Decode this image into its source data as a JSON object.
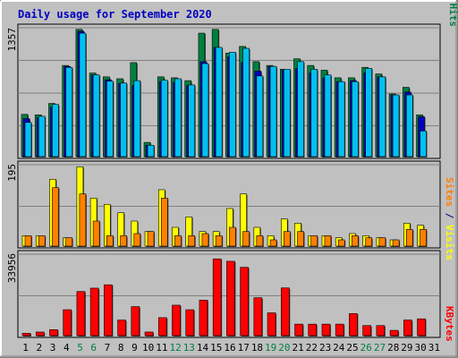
{
  "chart_data": {
    "type": "bar",
    "title": "Daily usage for September 2020",
    "days": [
      "1",
      "2",
      "3",
      "4",
      "5",
      "6",
      "7",
      "8",
      "9",
      "10",
      "11",
      "12",
      "13",
      "14",
      "15",
      "16",
      "17",
      "18",
      "19",
      "20",
      "21",
      "22",
      "23",
      "24",
      "25",
      "26",
      "27",
      "28",
      "29",
      "30",
      "31"
    ],
    "weekend_days": [
      "5",
      "6",
      "12",
      "13",
      "19",
      "20",
      "26",
      "27"
    ],
    "panels": {
      "top": {
        "max_label": "1357",
        "ymax": 1357,
        "legend": [
          {
            "text": "Pages",
            "color": "#00c0f0"
          },
          {
            "text": " / ",
            "color": "#00008b"
          },
          {
            "text": "Files",
            "color": "#0000c0"
          },
          {
            "text": " / ",
            "color": "#00008b"
          },
          {
            "text": "Hits",
            "color": "#008040"
          }
        ],
        "series": [
          {
            "name": "Hits",
            "color": "#008040",
            "values": [
              445,
              440,
              560,
              960,
              1340,
              880,
              840,
              820,
              990,
              150,
              840,
              830,
              800,
              1300,
              1340,
              1090,
              1160,
              1000,
              960,
              920,
              1030,
              960,
              910,
              830,
              830,
              940,
              870,
              660,
              730,
              440,
              0
            ]
          },
          {
            "name": "Files",
            "color": "#0000c0",
            "values": [
              400,
              410,
              520,
              950,
              1320,
              860,
              810,
              770,
              750,
              120,
              790,
              780,
              750,
              1000,
              1150,
              1050,
              990,
              900,
              950,
              910,
              930,
              880,
              830,
              790,
              800,
              880,
              840,
              650,
              680,
              420,
              0
            ]
          },
          {
            "name": "Pages",
            "color": "#00c0f0",
            "values": [
              360,
              425,
              550,
              940,
              1300,
              860,
              795,
              775,
              800,
              120,
              805,
              820,
              755,
              980,
              1150,
              1100,
              1140,
              850,
              950,
              920,
              1000,
              920,
              860,
              790,
              790,
              930,
              840,
              650,
              650,
              270,
              0
            ]
          }
        ]
      },
      "middle": {
        "max_label": "195",
        "ymax": 195,
        "legend": [
          {
            "text": "Sites",
            "color": "#ff8000"
          },
          {
            "text": " / ",
            "color": "#00008b"
          },
          {
            "text": "Visits",
            "color": "#ffff00"
          }
        ],
        "series": [
          {
            "name": "Visits",
            "color": "#ffff00",
            "values": [
              25,
              25,
              160,
              20,
              190,
              115,
              100,
              80,
              60,
              35,
              135,
              45,
              70,
              35,
              35,
              90,
              125,
              45,
              25,
              65,
              55,
              25,
              25,
              20,
              30,
              25,
              20,
              15,
              55,
              50,
              0
            ]
          },
          {
            "name": "Sites",
            "color": "#ff8000",
            "values": [
              25,
              25,
              140,
              20,
              125,
              60,
              25,
              25,
              30,
              35,
              115,
              25,
              25,
              30,
              25,
              45,
              35,
              25,
              15,
              35,
              35,
              25,
              25,
              15,
              25,
              20,
              20,
              15,
              40,
              40,
              0
            ]
          }
        ]
      },
      "bottom": {
        "max_label": "33956",
        "ymax": 33956,
        "legend": [
          {
            "text": "KBytes",
            "color": "#ff0000"
          }
        ],
        "series": [
          {
            "name": "KBytes",
            "color": "#ff0000",
            "values": [
              1000,
              1500,
              2500,
              10800,
              18400,
              19800,
              21200,
              6500,
              12100,
              1500,
              7500,
              12700,
              10800,
              14800,
              32000,
              31000,
              28500,
              15800,
              9500,
              19900,
              4800,
              4800,
              4800,
              4800,
              9200,
              4200,
              4200,
              2200,
              6500,
              7000,
              0
            ]
          }
        ]
      }
    }
  }
}
